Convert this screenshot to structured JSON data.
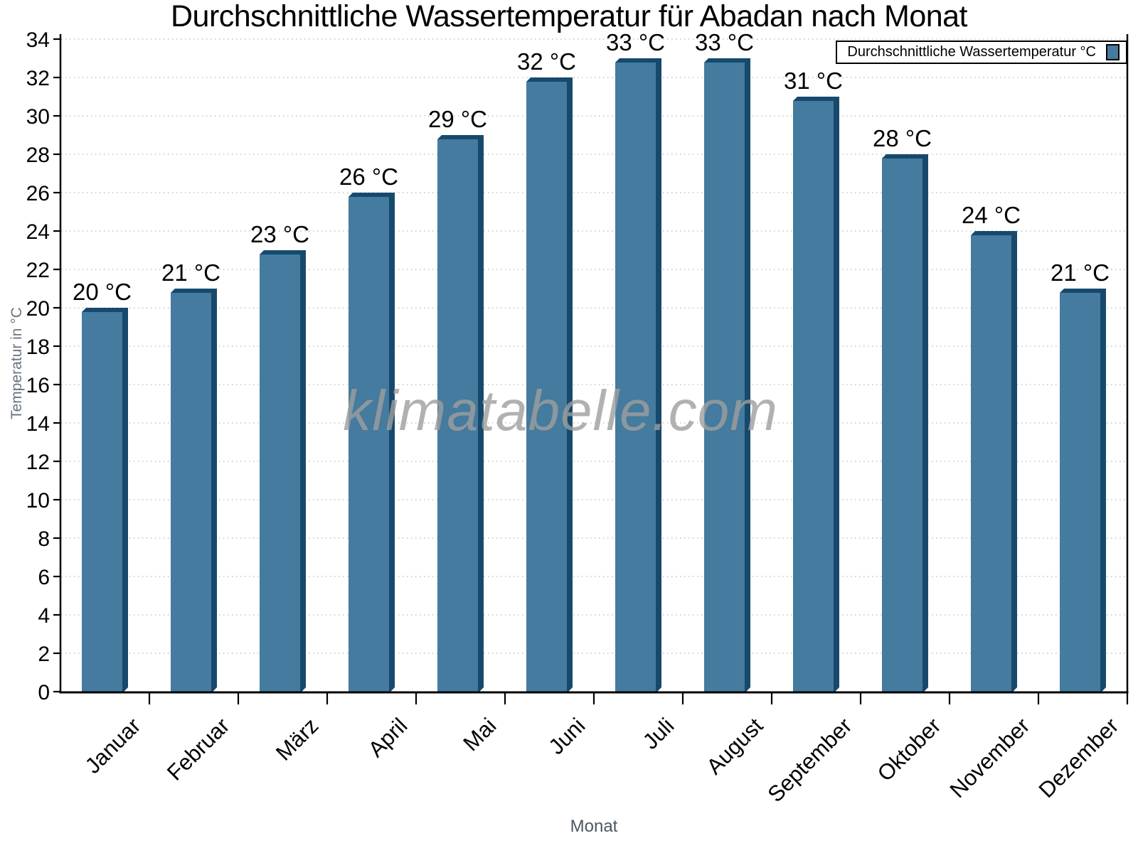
{
  "chart_data": {
    "type": "bar",
    "title": "Durchschnittliche Wassertemperatur für Abadan nach Monat",
    "categories": [
      "Januar",
      "Februar",
      "März",
      "April",
      "Mai",
      "Juni",
      "Juli",
      "August",
      "September",
      "Oktober",
      "November",
      "Dezember"
    ],
    "values": [
      20,
      21,
      23,
      26,
      29,
      32,
      33,
      33,
      31,
      28,
      24,
      21
    ],
    "unit": "°C",
    "value_label_format": "{v} °C",
    "xlabel": "Monat",
    "ylabel": "Temperatur in °C",
    "ylim": [
      0,
      34
    ],
    "ytick_step": 2,
    "grid": {
      "horizontal": true,
      "style": "dotted"
    },
    "legend": {
      "label": "Durchschnittliche Wassertemperatur °C",
      "position": "top-right"
    },
    "watermark": "klimatabelle.com",
    "colors": {
      "bar_face": "#447B9E",
      "bar_shade": "#17496D",
      "axis": "#000000",
      "grid": "#C3C3C3",
      "tick_label": "#000000",
      "axis_title_gray": "#5C6670",
      "watermark": "#9E9E9E",
      "legend_border": "#000000",
      "background": "#FFFFFF"
    }
  }
}
